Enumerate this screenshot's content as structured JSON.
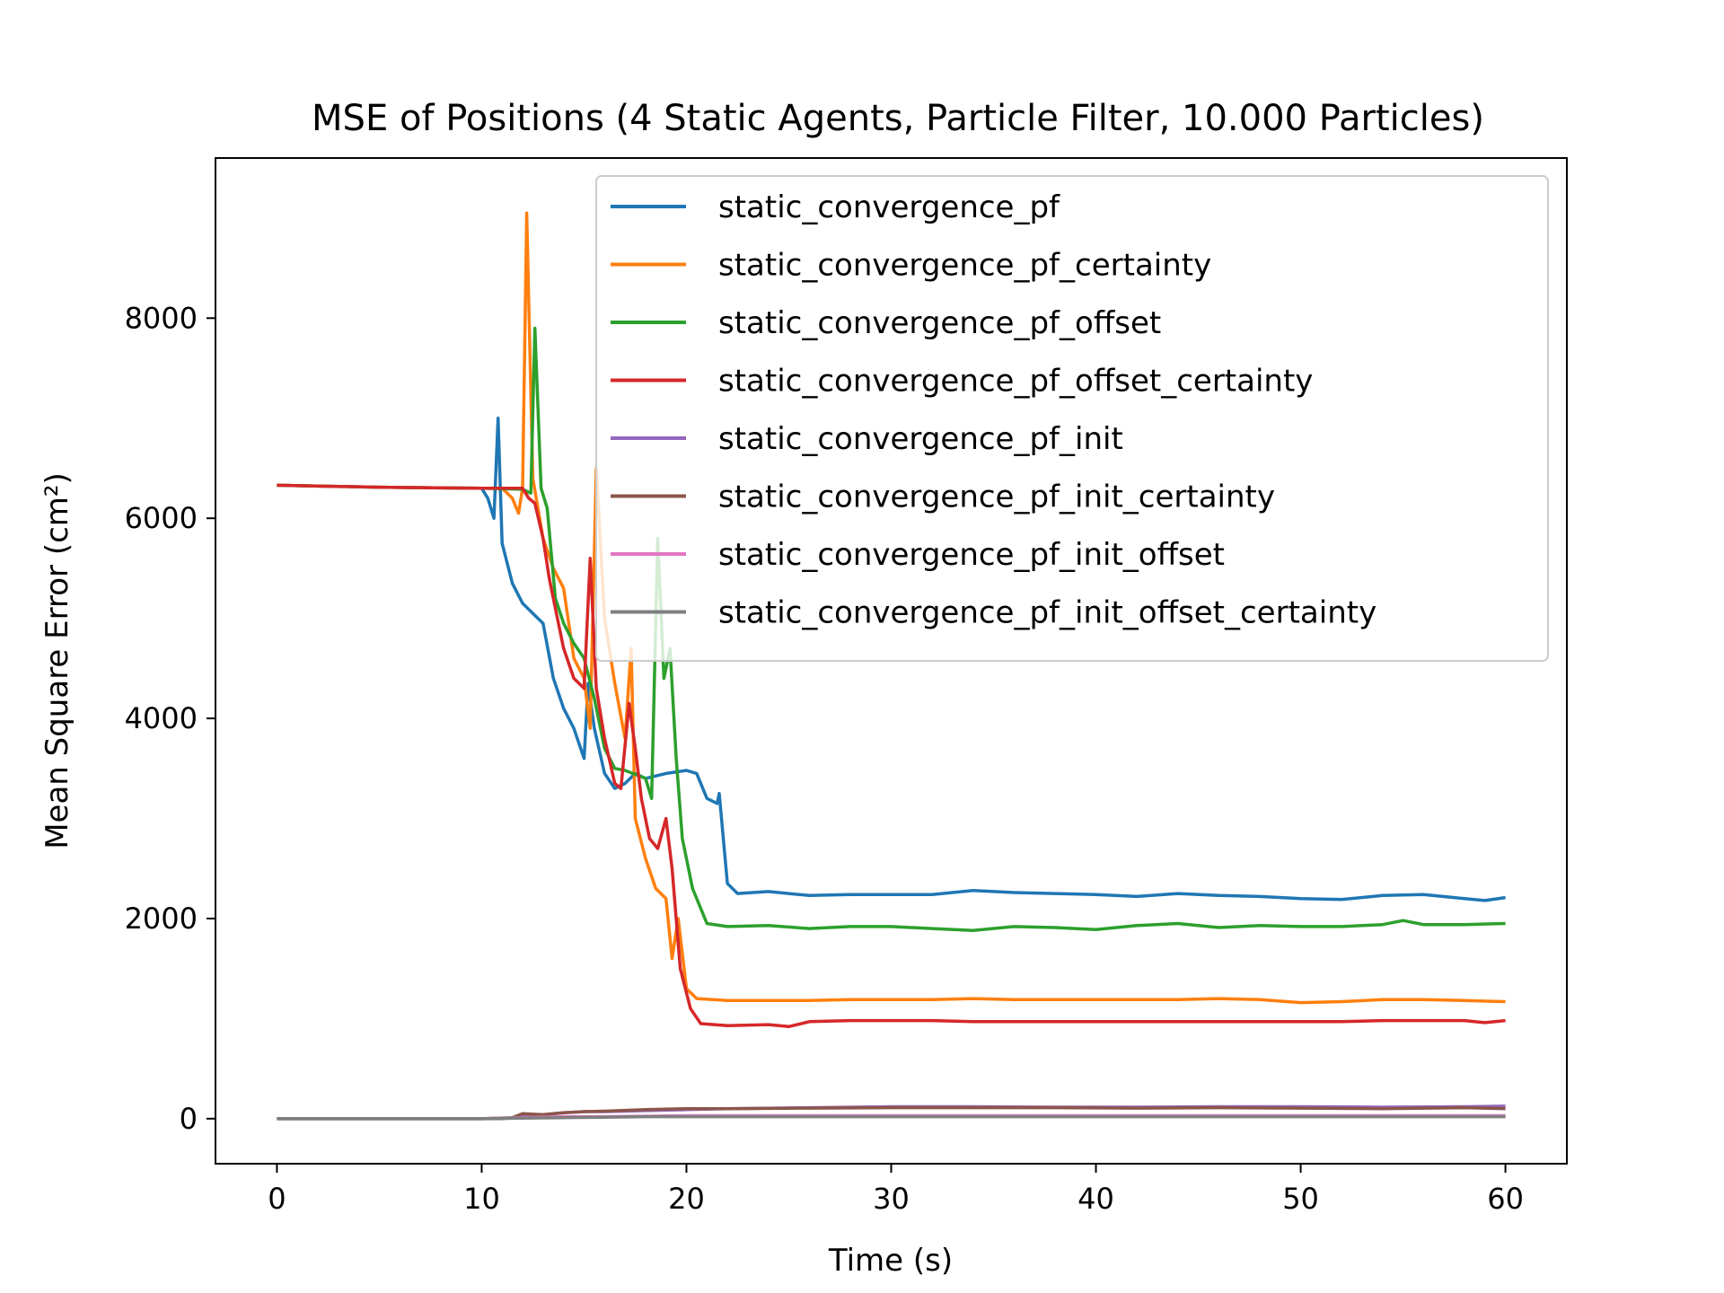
{
  "chart_data": {
    "type": "line",
    "title": "MSE of Positions (4 Static Agents, Particle Filter, 10.000 Particles)",
    "xlabel": "Time (s)",
    "ylabel": "Mean Square Error (cm²)",
    "xlim": [
      -3,
      63
    ],
    "ylim": [
      -450,
      9600
    ],
    "xticks": [
      0,
      10,
      20,
      30,
      40,
      50,
      60
    ],
    "yticks": [
      0,
      2000,
      4000,
      6000,
      8000
    ],
    "grid": false,
    "legend_position": "upper right",
    "series": [
      {
        "name": "static_convergence_pf",
        "color": "#1f77b4",
        "points": [
          [
            0,
            6330
          ],
          [
            5,
            6310
          ],
          [
            10,
            6300
          ],
          [
            10.3,
            6200
          ],
          [
            10.6,
            6000
          ],
          [
            10.8,
            7000
          ],
          [
            11,
            5750
          ],
          [
            11.5,
            5350
          ],
          [
            12,
            5150
          ],
          [
            12.5,
            5050
          ],
          [
            13,
            4950
          ],
          [
            13.5,
            4400
          ],
          [
            14,
            4100
          ],
          [
            14.5,
            3900
          ],
          [
            15,
            3600
          ],
          [
            15.2,
            4350
          ],
          [
            15.5,
            3900
          ],
          [
            16,
            3450
          ],
          [
            16.5,
            3300
          ],
          [
            17,
            3350
          ],
          [
            17.5,
            3450
          ],
          [
            18,
            3400
          ],
          [
            19,
            3450
          ],
          [
            20,
            3480
          ],
          [
            20.5,
            3450
          ],
          [
            21,
            3200
          ],
          [
            21.5,
            3150
          ],
          [
            21.6,
            3250
          ],
          [
            22,
            2350
          ],
          [
            22.5,
            2250
          ],
          [
            24,
            2270
          ],
          [
            26,
            2230
          ],
          [
            28,
            2240
          ],
          [
            30,
            2240
          ],
          [
            32,
            2240
          ],
          [
            34,
            2280
          ],
          [
            36,
            2260
          ],
          [
            38,
            2250
          ],
          [
            40,
            2240
          ],
          [
            42,
            2220
          ],
          [
            44,
            2250
          ],
          [
            46,
            2230
          ],
          [
            48,
            2220
          ],
          [
            50,
            2200
          ],
          [
            52,
            2190
          ],
          [
            54,
            2230
          ],
          [
            56,
            2240
          ],
          [
            58,
            2200
          ],
          [
            59,
            2180
          ],
          [
            60,
            2210
          ]
        ]
      },
      {
        "name": "static_convergence_pf_certainty",
        "color": "#ff7f0e",
        "points": [
          [
            0,
            6330
          ],
          [
            5,
            6310
          ],
          [
            10,
            6300
          ],
          [
            11,
            6300
          ],
          [
            11.5,
            6200
          ],
          [
            11.8,
            6050
          ],
          [
            12,
            6300
          ],
          [
            12.2,
            9050
          ],
          [
            12.5,
            6400
          ],
          [
            13,
            5800
          ],
          [
            13.5,
            5500
          ],
          [
            14,
            5300
          ],
          [
            14.5,
            4600
          ],
          [
            15,
            4400
          ],
          [
            15.3,
            3900
          ],
          [
            15.6,
            6500
          ],
          [
            16,
            5000
          ],
          [
            16.5,
            4350
          ],
          [
            17,
            3800
          ],
          [
            17.3,
            4700
          ],
          [
            17.5,
            3000
          ],
          [
            18,
            2600
          ],
          [
            18.5,
            2300
          ],
          [
            19,
            2200
          ],
          [
            19.3,
            1600
          ],
          [
            19.6,
            2000
          ],
          [
            20,
            1300
          ],
          [
            20.5,
            1200
          ],
          [
            22,
            1180
          ],
          [
            24,
            1180
          ],
          [
            26,
            1180
          ],
          [
            28,
            1190
          ],
          [
            30,
            1190
          ],
          [
            32,
            1190
          ],
          [
            34,
            1200
          ],
          [
            36,
            1190
          ],
          [
            38,
            1190
          ],
          [
            40,
            1190
          ],
          [
            42,
            1190
          ],
          [
            44,
            1190
          ],
          [
            46,
            1200
          ],
          [
            48,
            1190
          ],
          [
            50,
            1160
          ],
          [
            52,
            1170
          ],
          [
            54,
            1190
          ],
          [
            56,
            1190
          ],
          [
            58,
            1180
          ],
          [
            60,
            1170
          ]
        ]
      },
      {
        "name": "static_convergence_pf_offset",
        "color": "#2ca02c",
        "points": [
          [
            0,
            6330
          ],
          [
            5,
            6310
          ],
          [
            10,
            6300
          ],
          [
            12,
            6290
          ],
          [
            12.4,
            6250
          ],
          [
            12.6,
            7900
          ],
          [
            12.9,
            6300
          ],
          [
            13.2,
            6100
          ],
          [
            13.6,
            5200
          ],
          [
            14,
            4950
          ],
          [
            14.5,
            4750
          ],
          [
            15,
            4600
          ],
          [
            15.5,
            4200
          ],
          [
            16,
            3700
          ],
          [
            16.5,
            3500
          ],
          [
            17,
            3480
          ],
          [
            18,
            3400
          ],
          [
            18.3,
            3200
          ],
          [
            18.6,
            5800
          ],
          [
            18.9,
            4400
          ],
          [
            19.2,
            4700
          ],
          [
            19.5,
            3600
          ],
          [
            19.8,
            2800
          ],
          [
            20.3,
            2300
          ],
          [
            21,
            1950
          ],
          [
            22,
            1920
          ],
          [
            24,
            1930
          ],
          [
            26,
            1900
          ],
          [
            28,
            1920
          ],
          [
            30,
            1920
          ],
          [
            32,
            1900
          ],
          [
            34,
            1880
          ],
          [
            36,
            1920
          ],
          [
            38,
            1910
          ],
          [
            40,
            1890
          ],
          [
            42,
            1930
          ],
          [
            44,
            1950
          ],
          [
            46,
            1910
          ],
          [
            48,
            1930
          ],
          [
            50,
            1920
          ],
          [
            52,
            1920
          ],
          [
            54,
            1940
          ],
          [
            55,
            1980
          ],
          [
            56,
            1940
          ],
          [
            58,
            1940
          ],
          [
            60,
            1950
          ]
        ]
      },
      {
        "name": "static_convergence_pf_offset_certainty",
        "color": "#d62728",
        "points": [
          [
            0,
            6330
          ],
          [
            5,
            6310
          ],
          [
            10,
            6300
          ],
          [
            12,
            6300
          ],
          [
            12.3,
            6200
          ],
          [
            12.6,
            6150
          ],
          [
            13,
            5800
          ],
          [
            13.3,
            5400
          ],
          [
            13.6,
            5100
          ],
          [
            14,
            4700
          ],
          [
            14.5,
            4400
          ],
          [
            15,
            4300
          ],
          [
            15.3,
            5600
          ],
          [
            15.6,
            4300
          ],
          [
            16,
            3800
          ],
          [
            16.5,
            3350
          ],
          [
            16.8,
            3300
          ],
          [
            17.2,
            4150
          ],
          [
            17.5,
            3700
          ],
          [
            17.8,
            3200
          ],
          [
            18.2,
            2800
          ],
          [
            18.6,
            2700
          ],
          [
            19,
            3000
          ],
          [
            19.3,
            2500
          ],
          [
            19.7,
            1500
          ],
          [
            20.2,
            1100
          ],
          [
            20.7,
            950
          ],
          [
            22,
            930
          ],
          [
            24,
            940
          ],
          [
            25,
            920
          ],
          [
            26,
            970
          ],
          [
            28,
            980
          ],
          [
            30,
            980
          ],
          [
            32,
            980
          ],
          [
            34,
            970
          ],
          [
            36,
            970
          ],
          [
            38,
            970
          ],
          [
            40,
            970
          ],
          [
            42,
            970
          ],
          [
            44,
            970
          ],
          [
            46,
            970
          ],
          [
            48,
            970
          ],
          [
            50,
            970
          ],
          [
            52,
            970
          ],
          [
            54,
            980
          ],
          [
            56,
            980
          ],
          [
            58,
            980
          ],
          [
            59,
            960
          ],
          [
            60,
            980
          ]
        ]
      },
      {
        "name": "static_convergence_pf_init",
        "color": "#9467bd",
        "points": [
          [
            0,
            0
          ],
          [
            5,
            0
          ],
          [
            10,
            0
          ],
          [
            11,
            0
          ],
          [
            12,
            20
          ],
          [
            13,
            40
          ],
          [
            14,
            60
          ],
          [
            15,
            70
          ],
          [
            16,
            70
          ],
          [
            18,
            80
          ],
          [
            20,
            90
          ],
          [
            22,
            100
          ],
          [
            26,
            110
          ],
          [
            30,
            120
          ],
          [
            34,
            120
          ],
          [
            38,
            115
          ],
          [
            42,
            115
          ],
          [
            46,
            120
          ],
          [
            50,
            120
          ],
          [
            54,
            115
          ],
          [
            58,
            120
          ],
          [
            60,
            125
          ]
        ]
      },
      {
        "name": "static_convergence_pf_init_certainty",
        "color": "#8c564b",
        "points": [
          [
            0,
            0
          ],
          [
            5,
            0
          ],
          [
            10,
            0
          ],
          [
            11.5,
            10
          ],
          [
            12,
            50
          ],
          [
            13,
            40
          ],
          [
            14,
            60
          ],
          [
            15,
            70
          ],
          [
            16,
            75
          ],
          [
            18,
            90
          ],
          [
            20,
            100
          ],
          [
            22,
            100
          ],
          [
            26,
            105
          ],
          [
            30,
            110
          ],
          [
            34,
            110
          ],
          [
            38,
            110
          ],
          [
            42,
            105
          ],
          [
            46,
            110
          ],
          [
            50,
            105
          ],
          [
            54,
            100
          ],
          [
            58,
            110
          ],
          [
            60,
            100
          ]
        ]
      },
      {
        "name": "static_convergence_pf_init_offset",
        "color": "#e377c2",
        "points": [
          [
            0,
            0
          ],
          [
            5,
            0
          ],
          [
            10,
            0
          ],
          [
            12,
            10
          ],
          [
            14,
            20
          ],
          [
            16,
            20
          ],
          [
            18,
            25
          ],
          [
            20,
            30
          ],
          [
            25,
            30
          ],
          [
            30,
            30
          ],
          [
            35,
            30
          ],
          [
            40,
            30
          ],
          [
            45,
            30
          ],
          [
            50,
            30
          ],
          [
            55,
            30
          ],
          [
            60,
            30
          ]
        ]
      },
      {
        "name": "static_convergence_pf_init_offset_certainty",
        "color": "#7f7f7f",
        "points": [
          [
            0,
            0
          ],
          [
            5,
            0
          ],
          [
            10,
            0
          ],
          [
            12,
            5
          ],
          [
            14,
            10
          ],
          [
            16,
            15
          ],
          [
            18,
            20
          ],
          [
            20,
            20
          ],
          [
            25,
            20
          ],
          [
            30,
            20
          ],
          [
            35,
            20
          ],
          [
            40,
            20
          ],
          [
            45,
            20
          ],
          [
            50,
            20
          ],
          [
            55,
            20
          ],
          [
            60,
            20
          ]
        ]
      }
    ]
  }
}
